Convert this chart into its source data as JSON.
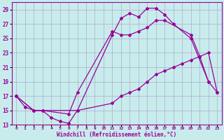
{
  "xlabel": "Windchill (Refroidissement éolien,°C)",
  "ylabel": "",
  "bg_color": "#c8ecec",
  "line_color": "#990099",
  "grid_color": "#aaaacc",
  "xlim": [
    -0.5,
    23.5
  ],
  "ylim": [
    13,
    30
  ],
  "xticks": [
    0,
    1,
    2,
    3,
    4,
    5,
    6,
    7,
    8,
    9,
    10,
    11,
    12,
    13,
    14,
    15,
    16,
    17,
    18,
    19,
    20,
    21,
    22,
    23
  ],
  "yticks": [
    13,
    15,
    17,
    19,
    21,
    23,
    25,
    27,
    29
  ],
  "line1_x": [
    0,
    1,
    2,
    3,
    4,
    5,
    6,
    7,
    11,
    12,
    13,
    14,
    15,
    16,
    17,
    18,
    20,
    22,
    23
  ],
  "line1_y": [
    17,
    15.5,
    15,
    15,
    14,
    13.5,
    13.2,
    15,
    25.5,
    27.8,
    28.5,
    28,
    29.2,
    29.2,
    28.3,
    27,
    25,
    19,
    17.5
  ],
  "line2_x": [
    0,
    2,
    3,
    6,
    7,
    11,
    12,
    13,
    14,
    15,
    16,
    17,
    20,
    21,
    22
  ],
  "line2_y": [
    17,
    15,
    15,
    14.5,
    17.5,
    26,
    25.5,
    25.5,
    26,
    26.5,
    27.5,
    27.5,
    25.5,
    22.5,
    19
  ],
  "line3_x": [
    0,
    2,
    7,
    11,
    12,
    13,
    14,
    15,
    16,
    17,
    18,
    19,
    20,
    21,
    22,
    23
  ],
  "line3_y": [
    17,
    15,
    15,
    16,
    17,
    17.5,
    18,
    19,
    20,
    20.5,
    21,
    21.5,
    22,
    22.5,
    23,
    17.5
  ]
}
